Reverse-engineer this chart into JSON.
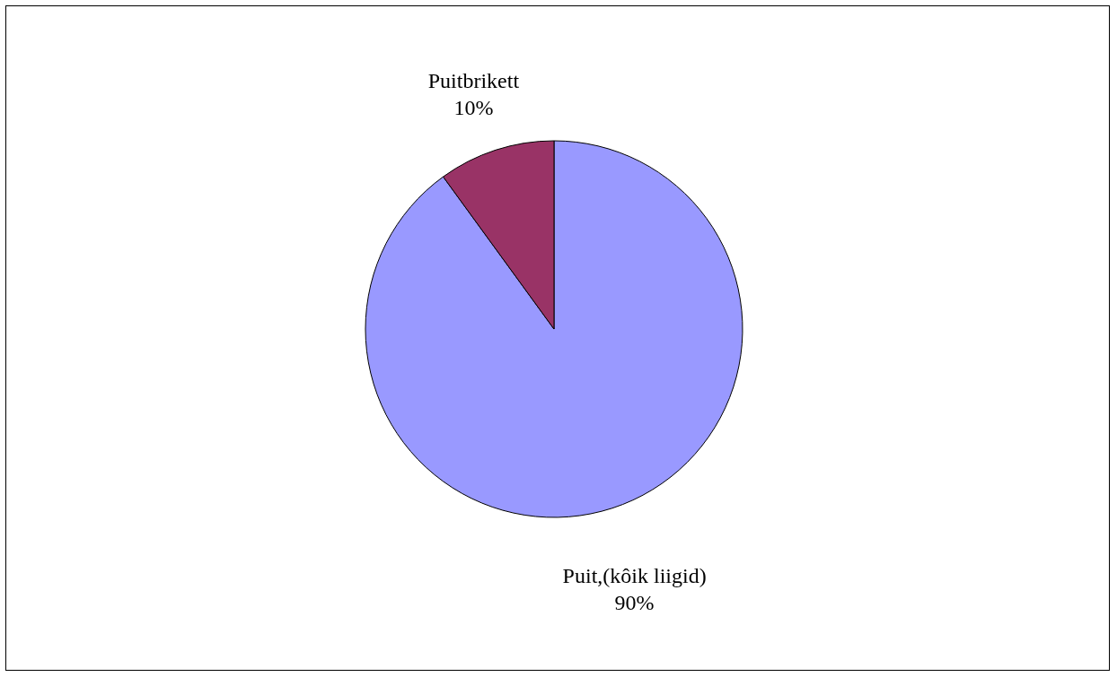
{
  "chart_data": {
    "type": "pie",
    "categories": [
      "Puit,(kôik liigid)",
      "Puitbrikett"
    ],
    "values": [
      90,
      10
    ],
    "colors": [
      "#9999ff",
      "#993366"
    ],
    "value_labels": [
      "90%",
      "10%"
    ],
    "legend": false
  }
}
